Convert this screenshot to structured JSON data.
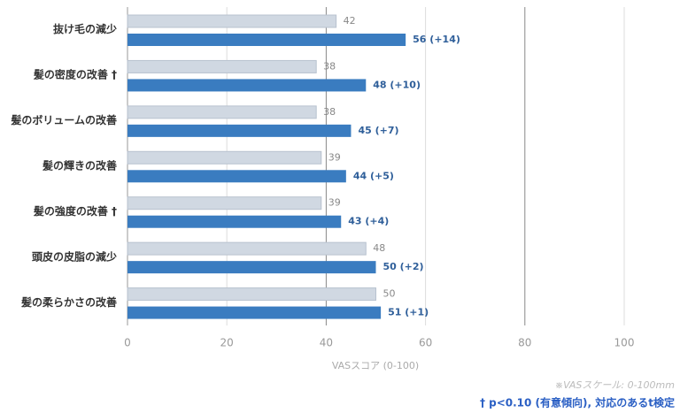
{
  "chart_data": {
    "type": "bar",
    "orientation": "horizontal",
    "categories": [
      "抜け毛の減少",
      "髪の密度の改善 †",
      "髪のボリュームの改善",
      "髪の輝きの改善",
      "髪の強度の改善 †",
      "頭皮の皮脂の減少",
      "髪の柔らかさの改善"
    ],
    "series": [
      {
        "color": "#d0d8e2",
        "values": [
          42,
          38,
          38,
          39,
          39,
          48,
          50
        ]
      },
      {
        "color": "#3a7cc0",
        "values": [
          56,
          48,
          45,
          44,
          43,
          50,
          51
        ],
        "value_labels": [
          "56 (+14)",
          "48 (+10)",
          "45 (+7)",
          "44 (+5)",
          "43 (+4)",
          "50 (+2)",
          "51 (+1)"
        ]
      }
    ],
    "xlabel": "VASスコア (0-100)",
    "xlim": [
      0,
      100
    ],
    "xticks": [
      0,
      20,
      40,
      60,
      80,
      100
    ],
    "grid": true,
    "notes": [
      "※VASスケール: 0-100mm",
      "† p<0.10 (有意傾向), 対応のあるt検定"
    ]
  }
}
